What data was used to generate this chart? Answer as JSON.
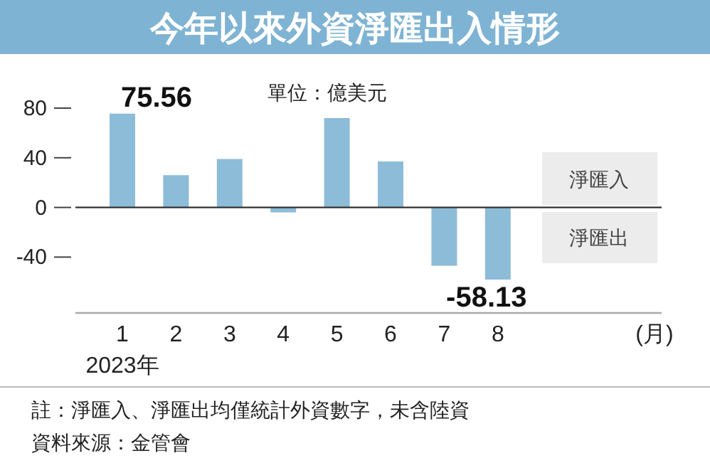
{
  "chart_data": {
    "type": "bar",
    "title": "今年以來外資淨匯出入情形",
    "xlabel": "(月)",
    "categories": [
      "1",
      "2",
      "3",
      "4",
      "5",
      "6",
      "7",
      "8"
    ],
    "values": [
      75.56,
      26,
      39,
      -4,
      72,
      37,
      -47,
      -58.13
    ],
    "value_labels": [
      "75.56",
      null,
      null,
      null,
      null,
      null,
      null,
      "-58.13"
    ],
    "color": "#8dbcd8",
    "ylim": [
      -85,
      80
    ],
    "yticks": [
      -40,
      0,
      40,
      80
    ],
    "annotations": [
      "單位：億美元",
      "淨匯入",
      "淨匯出",
      "2023年",
      "註：淨匯入、淨匯出均僅統計外資數字，未含陸資",
      "資料來源：金管會"
    ]
  }
}
